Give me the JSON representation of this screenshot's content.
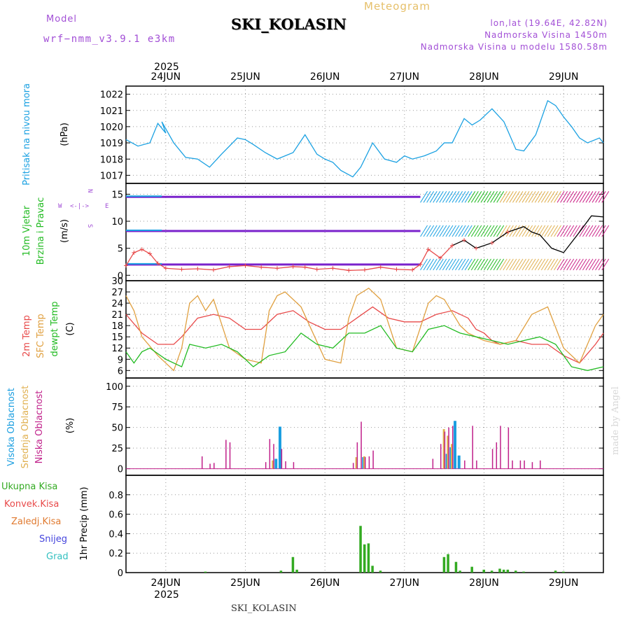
{
  "header": {
    "station": "SKI_KOLASIN",
    "meteogram": "Meteogram",
    "model_label": "Model",
    "model_value": "wrf−nmm_v3.9.1  e3km",
    "lonlat": "lon,lat (19.64E, 42.82N)",
    "elevation": "Nadmorska Visina 1450m",
    "model_elevation": "Nadmorska Visina u modelu 1580.58m"
  },
  "footer": {
    "station": "SKI_KOLASIN",
    "watermark": "made by Angel"
  },
  "colors": {
    "pressure": "#1ba1e2",
    "temp2m": "#e84a4a",
    "sfc": "#e0a040",
    "dew": "#22bb22",
    "cloud_high": "#1a9ee0",
    "cloud_mid": "#e0b050",
    "cloud_low": "#c0208a",
    "precip_total": "#33aa22",
    "precip_conv": "#e84a4a",
    "precip_frozen": "#e07a30",
    "snow": "#4444dd",
    "hail": "#33c0c0",
    "wind_high": "#cc2288",
    "wind_mid": "#e0b050",
    "wind_low": "#7a22cc",
    "wind_text": "#22bb22"
  },
  "chart_data": [
    {
      "type": "line",
      "name": "pressure",
      "ylabel_left": "Pritisak na nivou mora",
      "unit": "(hPa)",
      "ylim": [
        1016.5,
        1022.5
      ],
      "yticks": [
        1017,
        1018,
        1019,
        1020,
        1021,
        1022
      ],
      "x_days": [
        "24JUN",
        "25JUN",
        "26JUN",
        "27JUN",
        "28JUN",
        "29JUN"
      ],
      "year": "2025",
      "series": [
        {
          "name": "Sea level pressure",
          "x": [
            -0.5,
            -0.35,
            -0.2,
            -0.1,
            0.0,
            -0.05,
            0.1,
            0.25,
            0.4,
            0.55,
            0.7,
            0.9,
            1.0,
            1.1,
            1.25,
            1.4,
            1.6,
            1.75,
            1.9,
            2.0,
            2.1,
            2.2,
            2.35,
            2.45,
            2.6,
            2.75,
            2.9,
            3.0,
            3.1,
            3.25,
            3.4,
            3.5,
            3.6,
            3.75,
            3.85,
            3.95,
            4.1,
            4.25,
            4.4,
            4.5,
            4.65,
            4.8,
            4.9,
            5.0,
            5.1,
            5.2,
            5.3,
            5.45,
            5.5
          ],
          "values": [
            1019.2,
            1018.8,
            1019.0,
            1020.2,
            1019.6,
            1020.3,
            1019.0,
            1018.1,
            1018.0,
            1017.5,
            1018.3,
            1019.3,
            1019.2,
            1018.9,
            1018.4,
            1018.0,
            1018.4,
            1019.5,
            1018.3,
            1018.0,
            1017.8,
            1017.3,
            1016.9,
            1017.5,
            1019.0,
            1018.0,
            1017.8,
            1018.2,
            1018.0,
            1018.2,
            1018.5,
            1019.0,
            1019.0,
            1020.5,
            1020.1,
            1020.4,
            1021.1,
            1020.3,
            1018.6,
            1018.5,
            1019.5,
            1021.6,
            1021.3,
            1020.6,
            1020.0,
            1019.3,
            1019.0,
            1019.3,
            1019.0
          ]
        }
      ]
    },
    {
      "type": "line",
      "name": "wind",
      "ylabel_left": "10m Vjetar Brzina i Pravac",
      "unit": "(m/s)",
      "ylim": [
        -1,
        17
      ],
      "yticks": [
        0,
        5,
        10,
        15
      ],
      "legend": [
        "W",
        "<-|->",
        "E",
        "N",
        "S"
      ],
      "series": [
        {
          "name": "10m wind speed",
          "x": [
            -0.5,
            -0.4,
            -0.3,
            -0.2,
            -0.1,
            0.0,
            0.2,
            0.4,
            0.6,
            0.8,
            1.0,
            1.2,
            1.4,
            1.6,
            1.75,
            1.9,
            2.1,
            2.3,
            2.5,
            2.7,
            2.9,
            3.1,
            3.2,
            3.3,
            3.45,
            3.6,
            3.75,
            3.9,
            4.1,
            4.3,
            4.5,
            4.6,
            4.7,
            4.85,
            5.0,
            5.2,
            5.35,
            5.5
          ],
          "values": [
            1.8,
            4.2,
            4.8,
            4.0,
            2.2,
            1.3,
            1.1,
            1.2,
            1.0,
            1.6,
            1.8,
            1.5,
            1.3,
            1.6,
            1.5,
            1.1,
            1.3,
            0.9,
            1.0,
            1.5,
            1.1,
            1.0,
            2.0,
            4.8,
            3.2,
            5.5,
            6.5,
            5.0,
            6.0,
            8.0,
            9.0,
            8.0,
            7.5,
            5.0,
            4.2,
            8.0,
            11.0,
            10.8
          ]
        }
      ]
    },
    {
      "type": "line",
      "name": "temperature",
      "ylabels_left": [
        "2m Temp",
        "SFC Temp",
        "dewpt Temp"
      ],
      "unit": "(C)",
      "ylim": [
        4,
        30
      ],
      "yticks": [
        6,
        9,
        12,
        15,
        18,
        21,
        24,
        27,
        30
      ],
      "series": [
        {
          "name": "2m Temp",
          "x": [
            -0.5,
            -0.3,
            -0.1,
            0.1,
            0.2,
            0.4,
            0.6,
            0.8,
            1.0,
            1.2,
            1.4,
            1.6,
            1.8,
            2.0,
            2.2,
            2.4,
            2.6,
            2.8,
            3.0,
            3.2,
            3.4,
            3.6,
            3.8,
            3.9,
            4.0,
            4.1,
            4.2,
            4.4,
            4.6,
            4.8,
            5.0,
            5.2,
            5.4,
            5.5
          ],
          "values": [
            21,
            16,
            13,
            13,
            15,
            20,
            21,
            20,
            17,
            17,
            21,
            22,
            19,
            17,
            17,
            20,
            23,
            20,
            19,
            19,
            21,
            22,
            20,
            17,
            16,
            14,
            13,
            14,
            13,
            13,
            10,
            8,
            13,
            16
          ]
        },
        {
          "name": "SFC Temp",
          "x": [
            -0.5,
            -0.4,
            -0.3,
            -0.1,
            0.1,
            0.2,
            0.3,
            0.4,
            0.5,
            0.6,
            0.8,
            1.0,
            1.2,
            1.3,
            1.4,
            1.5,
            1.7,
            2.0,
            2.2,
            2.3,
            2.4,
            2.55,
            2.7,
            2.9,
            3.1,
            3.3,
            3.4,
            3.5,
            3.7,
            3.8,
            3.9,
            4.0,
            4.2,
            4.4,
            4.6,
            4.8,
            5.0,
            5.2,
            5.4,
            5.5
          ],
          "values": [
            26,
            22,
            15,
            10,
            6,
            12,
            24,
            26,
            22,
            25,
            12,
            9,
            8,
            22,
            26,
            27,
            23,
            9,
            8,
            20,
            26,
            28,
            25,
            12,
            11,
            24,
            26,
            25,
            18,
            16,
            15,
            14,
            13,
            14,
            21,
            23,
            12,
            8,
            18,
            21
          ]
        },
        {
          "name": "dewpt Temp",
          "x": [
            -0.5,
            -0.4,
            -0.3,
            -0.2,
            0.0,
            0.2,
            0.3,
            0.5,
            0.7,
            0.9,
            1.1,
            1.3,
            1.5,
            1.7,
            1.9,
            2.1,
            2.3,
            2.5,
            2.7,
            2.9,
            3.1,
            3.3,
            3.5,
            3.7,
            3.9,
            4.1,
            4.3,
            4.5,
            4.7,
            4.9,
            5.1,
            5.3,
            5.5
          ],
          "values": [
            11,
            8,
            11,
            12,
            9,
            7,
            13,
            12,
            13,
            11,
            7,
            10,
            11,
            16,
            13,
            12,
            16,
            16,
            18,
            12,
            11,
            17,
            18,
            16,
            15,
            14,
            13,
            14,
            15,
            13,
            7,
            6,
            7
          ]
        }
      ]
    },
    {
      "type": "bar",
      "name": "cloud",
      "ylabels_left": [
        "Visoka Oblacnost",
        "Srednja Oblacnost",
        "Niska Oblacnost"
      ],
      "unit": "(%)",
      "ylim": [
        -8,
        110
      ],
      "yticks": [
        0,
        25,
        50,
        75,
        100
      ],
      "series": [
        {
          "name": "Visoka Oblacnost",
          "x": [
            1.35,
            1.4,
            2.45,
            3.5,
            3.55,
            3.6,
            3.65
          ],
          "values": [
            12,
            51,
            14,
            18,
            26,
            58,
            16
          ]
        },
        {
          "name": "Srednja Oblacnost",
          "x": [
            1.35,
            2.4,
            2.5,
            3.5,
            3.55,
            3.6
          ],
          "values": [
            10,
            14,
            15,
            48,
            40,
            30
          ]
        },
        {
          "name": "Niska Oblacnost",
          "x": [
            0.45,
            0.55,
            0.6,
            0.75,
            0.8,
            1.25,
            1.3,
            1.35,
            1.45,
            1.5,
            1.6,
            2.35,
            2.4,
            2.45,
            2.5,
            2.55,
            2.6,
            3.35,
            3.45,
            3.5,
            3.55,
            3.6,
            3.75,
            3.85,
            3.9,
            4.1,
            4.15,
            4.2,
            4.3,
            4.35,
            4.45,
            4.5,
            4.6,
            4.7
          ],
          "values": [
            15,
            6,
            7,
            35,
            32,
            8,
            36,
            30,
            24,
            9,
            8,
            7,
            32,
            57,
            14,
            15,
            22,
            12,
            30,
            45,
            50,
            52,
            10,
            52,
            10,
            24,
            32,
            52,
            50,
            10,
            10,
            10,
            8,
            10
          ]
        }
      ]
    },
    {
      "type": "bar",
      "name": "precip",
      "ylabels_left": [
        "Ukupna Kisa",
        "Konvek.Kisa",
        "Zaledj.Kisa",
        "Snijeg",
        "Grad"
      ],
      "unit": "1hr Precip (mm)",
      "ylim": [
        0,
        1.0
      ],
      "yticks": [
        0,
        0.2,
        0.4,
        0.6,
        0.8
      ],
      "series": [
        {
          "name": "Ukupna Kisa",
          "x": [
            0.5,
            1.45,
            1.6,
            1.65,
            2.45,
            2.5,
            2.55,
            2.6,
            2.7,
            3.5,
            3.55,
            3.65,
            3.7,
            3.85,
            4.0,
            4.1,
            4.2,
            4.25,
            4.3,
            4.4,
            4.5,
            4.9,
            5.0
          ],
          "values": [
            0.01,
            0.02,
            0.16,
            0.03,
            0.48,
            0.29,
            0.3,
            0.07,
            0.02,
            0.16,
            0.19,
            0.11,
            0.02,
            0.06,
            0.03,
            0.02,
            0.04,
            0.03,
            0.03,
            0.02,
            0.01,
            0.02,
            0.01
          ]
        }
      ]
    }
  ]
}
